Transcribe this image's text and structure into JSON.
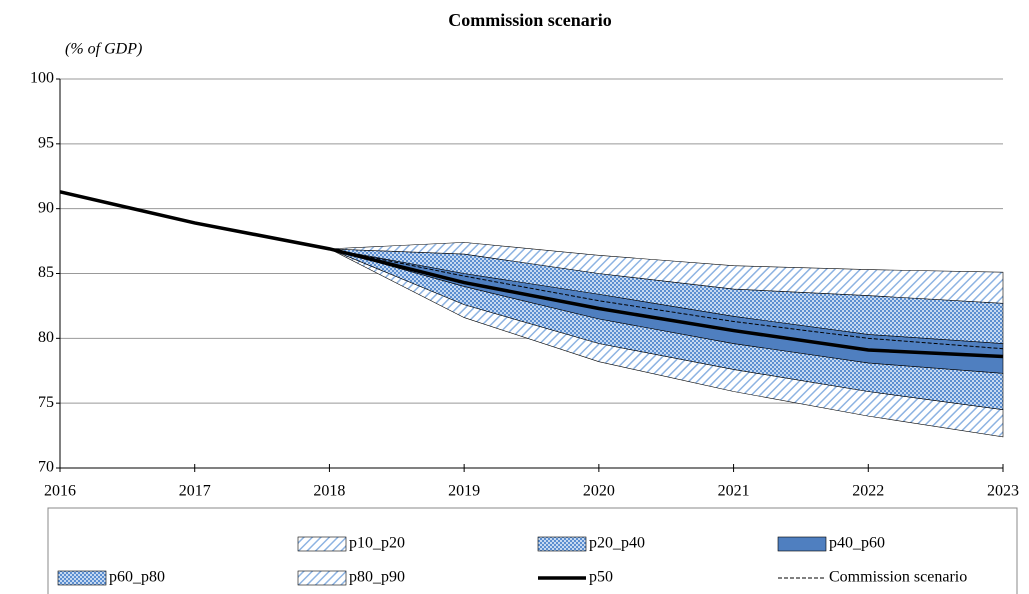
{
  "chart_data": {
    "type": "fan",
    "title": "Commission scenario",
    "y_label": "(% of GDP)",
    "x": [
      2016,
      2017,
      2018,
      2019,
      2020,
      2021,
      2022,
      2023
    ],
    "xlim": [
      2016,
      2023
    ],
    "xticks": [
      2016,
      2017,
      2018,
      2019,
      2020,
      2021,
      2022,
      2023
    ],
    "ylim": [
      70,
      100
    ],
    "yticks": [
      70,
      75,
      80,
      85,
      90,
      95,
      100
    ],
    "grid": true,
    "bands": [
      {
        "name": "p10_p20",
        "color": "#8db3e2",
        "pattern": "hatch",
        "low": [
          null,
          null,
          86.9,
          81.6,
          78.2,
          75.9,
          74.0,
          72.4
        ],
        "high": [
          null,
          null,
          86.9,
          82.6,
          79.6,
          77.6,
          75.9,
          74.5
        ]
      },
      {
        "name": "p20_p40",
        "color": "#5b8ed0",
        "pattern": "crosshatch",
        "low": [
          null,
          null,
          86.9,
          82.6,
          79.6,
          77.6,
          75.9,
          74.5
        ],
        "high": [
          null,
          null,
          86.9,
          84.0,
          81.5,
          79.6,
          78.1,
          77.3
        ]
      },
      {
        "name": "p40_p60",
        "color": "#4f7fc0",
        "pattern": "solid",
        "low": [
          null,
          null,
          86.9,
          84.0,
          81.5,
          79.6,
          78.1,
          77.3
        ],
        "high": [
          null,
          null,
          86.9,
          85.0,
          83.4,
          81.7,
          80.3,
          79.6
        ]
      },
      {
        "name": "p60_p80",
        "color": "#5b8ed0",
        "pattern": "crosshatch",
        "low": [
          null,
          null,
          86.9,
          85.0,
          83.4,
          81.7,
          80.3,
          79.6
        ],
        "high": [
          null,
          null,
          86.9,
          86.5,
          85.0,
          83.8,
          83.3,
          82.7
        ]
      },
      {
        "name": "p80_p90",
        "color": "#8db3e2",
        "pattern": "hatch",
        "low": [
          null,
          null,
          86.9,
          86.5,
          85.0,
          83.8,
          83.3,
          82.7
        ],
        "high": [
          null,
          null,
          86.9,
          87.4,
          86.4,
          85.6,
          85.3,
          85.1
        ]
      }
    ],
    "series": [
      {
        "name": "p50",
        "color": "#000000",
        "style": "solid",
        "values": [
          91.3,
          88.9,
          86.9,
          84.3,
          82.3,
          80.6,
          79.1,
          78.6
        ]
      },
      {
        "name": "Commission scenario",
        "color": "#000000",
        "style": "dashed",
        "values": [
          null,
          null,
          86.9,
          84.8,
          82.9,
          81.3,
          80.0,
          79.2
        ]
      }
    ]
  }
}
